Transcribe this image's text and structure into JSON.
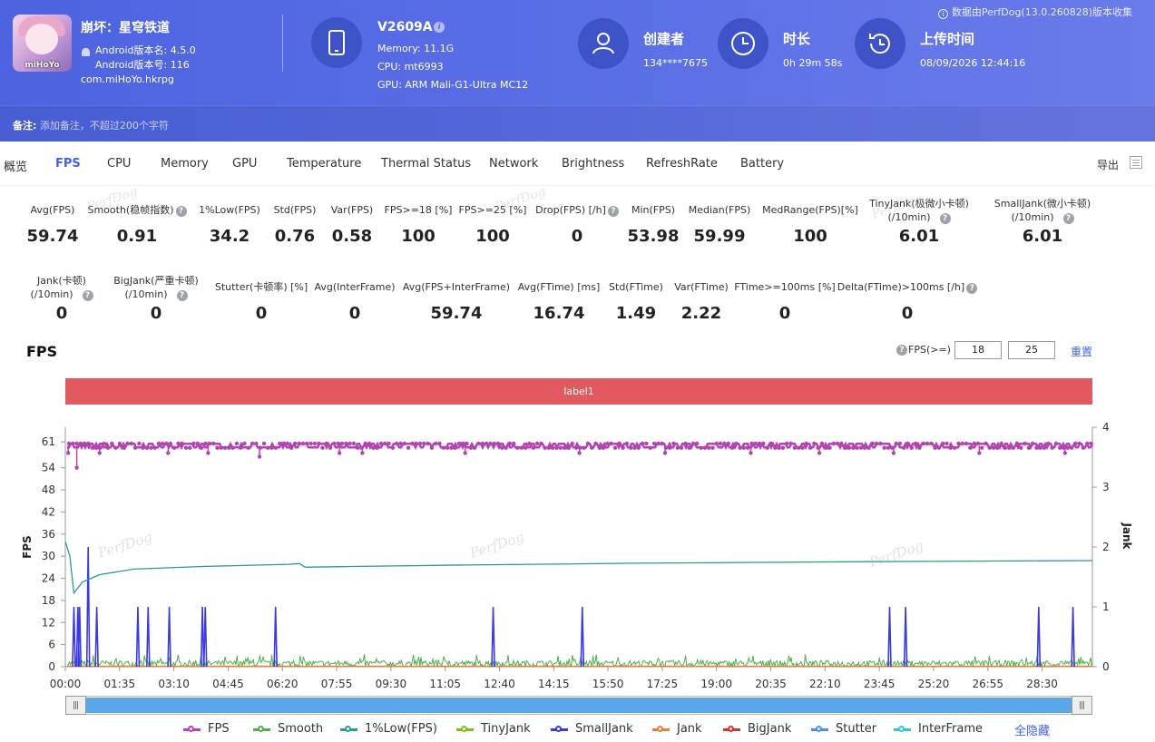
{
  "app": {
    "name": "崩坏：星穹铁道",
    "icon_label": "miHoYo",
    "version_name": "Android版本名: 4.5.0",
    "version_code": "Android版本号: 116",
    "package": "com.miHoYo.hkrpg"
  },
  "device": {
    "name": "V2609A",
    "memory": "Memory: 11.1G",
    "cpu": "CPU: mt6993",
    "gpu": "GPU: ARM Mali-G1-Ultra MC12"
  },
  "stats": {
    "creator_title": "创建者",
    "creator_value": "134****7675",
    "duration_title": "时长",
    "duration_value": "0h 29m 58s",
    "upload_title": "上传时间",
    "upload_value": "08/09/2026 12:44:16"
  },
  "collect_note": "数据由PerfDog(13.0.260828)版本收集",
  "remark": {
    "label": "备注:",
    "placeholder": "添加备注，不超过200个字符"
  },
  "tabs": [
    "概览",
    "FPS",
    "CPU",
    "Memory",
    "GPU",
    "Temperature",
    "Thermal Status",
    "Network",
    "Brightness",
    "RefreshRate",
    "Battery"
  ],
  "active_tab": "FPS",
  "export_label": "导出",
  "metrics_row1": [
    {
      "label": "Avg(FPS)",
      "value": "59.74"
    },
    {
      "label": "Smooth(稳帧指数)",
      "value": "0.91",
      "help": true
    },
    {
      "label": "1%Low(FPS)",
      "value": "34.2"
    },
    {
      "label": "Std(FPS)",
      "value": "0.76"
    },
    {
      "label": "Var(FPS)",
      "value": "0.58"
    },
    {
      "label": "FPS>=18 [%]",
      "value": "100"
    },
    {
      "label": "FPS>=25 [%]",
      "value": "100"
    },
    {
      "label": "Drop(FPS) [/h]",
      "value": "0",
      "help": true
    },
    {
      "label": "Min(FPS)",
      "value": "53.98"
    },
    {
      "label": "Median(FPS)",
      "value": "59.99"
    },
    {
      "label": "MedRange(FPS)[%]",
      "value": "100"
    },
    {
      "label": "TinyJank(极微小卡顿)",
      "label2": "(/10min)",
      "value": "6.01",
      "help": true
    },
    {
      "label": "SmallJank(微小卡顿)",
      "label2": "(/10min)",
      "value": "6.01",
      "help": true
    }
  ],
  "metrics_row2": [
    {
      "label": "Jank(卡顿)",
      "label2": "(/10min)",
      "value": "0",
      "help": true
    },
    {
      "label": "BigJank(严重卡顿)",
      "label2": "(/10min)",
      "value": "0",
      "help": true
    },
    {
      "label": "Stutter(卡顿率) [%]",
      "value": "0"
    },
    {
      "label": "Avg(InterFrame)",
      "value": "0"
    },
    {
      "label": "Avg(FPS+InterFrame)",
      "value": "59.74"
    },
    {
      "label": "Avg(FTime) [ms]",
      "value": "16.74"
    },
    {
      "label": "Std(FTime)",
      "value": "1.49"
    },
    {
      "label": "Var(FTime)",
      "value": "2.22"
    },
    {
      "label": "FTime>=100ms [%]",
      "value": "0"
    },
    {
      "label": "Delta(FTime)>100ms [/h]",
      "value": "0",
      "help": true
    }
  ],
  "watermark": "PerfDog",
  "fps_section": {
    "title": "FPS",
    "threshold_label": "FPS(>=)",
    "threshold1": "18",
    "threshold2": "25",
    "reset_label": "重置",
    "label_bar": "label1"
  },
  "chart_data": {
    "type": "line",
    "title": "",
    "ylabel": "FPS",
    "y2label": "Jank",
    "ylim": [
      0,
      65
    ],
    "y2lim": [
      0,
      4
    ],
    "yticks": [
      0,
      6,
      12,
      18,
      24,
      30,
      36,
      42,
      48,
      54,
      61
    ],
    "y2ticks": [
      0,
      1,
      2,
      3,
      4
    ],
    "x_tick_labels": [
      "00:00",
      "01:35",
      "03:10",
      "04:45",
      "06:20",
      "07:55",
      "09:30",
      "11:05",
      "12:40",
      "14:15",
      "15:50",
      "17:25",
      "19:00",
      "20:35",
      "22:10",
      "23:45",
      "25:20",
      "26:55",
      "28:30"
    ],
    "duration_seconds": 1798,
    "series": [
      {
        "name": "FPS",
        "color": "#b544b3",
        "axis": "left",
        "baseline": 60,
        "dips": [
          {
            "t": 5,
            "v": 58
          },
          {
            "t": 20,
            "v": 54
          },
          {
            "t": 60,
            "v": 58
          },
          {
            "t": 180,
            "v": 58
          },
          {
            "t": 250,
            "v": 58
          },
          {
            "t": 340,
            "v": 57
          },
          {
            "t": 480,
            "v": 58
          },
          {
            "t": 520,
            "v": 58
          },
          {
            "t": 700,
            "v": 58
          },
          {
            "t": 900,
            "v": 58
          },
          {
            "t": 1050,
            "v": 58
          },
          {
            "t": 1200,
            "v": 58
          },
          {
            "t": 1320,
            "v": 58
          },
          {
            "t": 1450,
            "v": 58
          },
          {
            "t": 1600,
            "v": 58
          },
          {
            "t": 1750,
            "v": 58
          }
        ]
      },
      {
        "name": "Smooth",
        "color": "#4caf50",
        "axis": "right",
        "range": [
          0,
          0.15
        ]
      },
      {
        "name": "1%Low(FPS)",
        "color": "#2a9a95",
        "axis": "left",
        "points": [
          [
            0,
            34
          ],
          [
            8,
            30
          ],
          [
            15,
            20
          ],
          [
            30,
            23
          ],
          [
            60,
            25
          ],
          [
            120,
            26.5
          ],
          [
            240,
            27.2
          ],
          [
            390,
            27.8
          ],
          [
            410,
            28
          ],
          [
            420,
            27
          ],
          [
            500,
            27.2
          ],
          [
            700,
            27.6
          ],
          [
            1000,
            28.1
          ],
          [
            1400,
            28.5
          ],
          [
            1798,
            28.8
          ]
        ]
      },
      {
        "name": "TinyJank",
        "color": "#7cbf1b",
        "axis": "right"
      },
      {
        "name": "SmallJank",
        "color": "#3a3ae0",
        "axis": "right",
        "spikes": [
          {
            "t": 15,
            "v": 1
          },
          {
            "t": 22,
            "v": 1
          },
          {
            "t": 25,
            "v": 1
          },
          {
            "t": 40,
            "v": 2
          },
          {
            "t": 55,
            "v": 1
          },
          {
            "t": 127,
            "v": 1
          },
          {
            "t": 145,
            "v": 1
          },
          {
            "t": 182,
            "v": 1
          },
          {
            "t": 240,
            "v": 1
          },
          {
            "t": 245,
            "v": 1
          },
          {
            "t": 368,
            "v": 1
          },
          {
            "t": 749,
            "v": 1
          },
          {
            "t": 905,
            "v": 1
          },
          {
            "t": 1443,
            "v": 1
          },
          {
            "t": 1471,
            "v": 1
          },
          {
            "t": 1704,
            "v": 1
          },
          {
            "t": 1764,
            "v": 1
          }
        ]
      },
      {
        "name": "Jank",
        "color": "#ee7d33",
        "axis": "right"
      },
      {
        "name": "BigJank",
        "color": "#d9302c",
        "axis": "right"
      },
      {
        "name": "Stutter",
        "color": "#4d8df2",
        "axis": "right"
      },
      {
        "name": "InterFrame",
        "color": "#38c4d8",
        "axis": "right"
      }
    ],
    "legend_position": "bottom"
  },
  "hide_all_label": "全隐藏"
}
